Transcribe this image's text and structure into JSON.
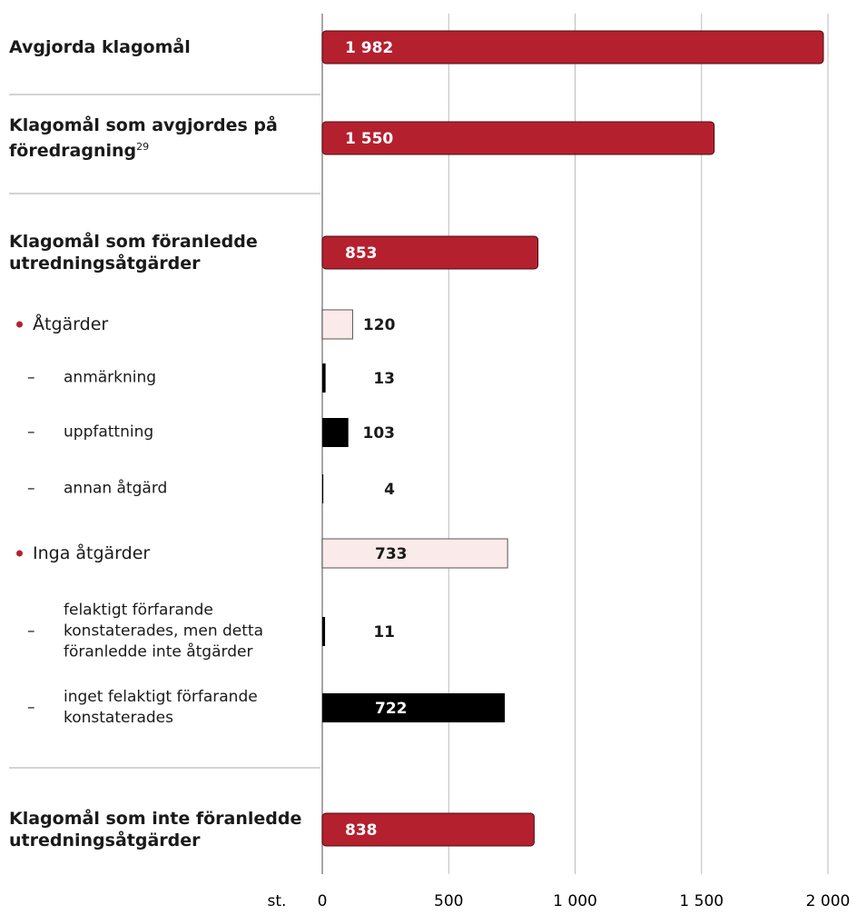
{
  "chart_data": {
    "type": "bar",
    "orientation": "horizontal",
    "categories": [
      "Avgjorda klagomål",
      "Klagomål som avgjordes på föredragning",
      "Klagomål som föranledde utredningsåtgärder",
      "Åtgärder",
      "anmärkning",
      "uppfattning",
      "annan åtgärd",
      "Inga åtgärder",
      "felaktigt förfarande konstaterades, men detta föranledde inte åtgärder",
      "inget felaktigt förfarande konstaterades",
      "Klagomål som inte föranledde utredningsåtgärder"
    ],
    "footnotes": [
      null,
      "29",
      null,
      null,
      null,
      null,
      null,
      null,
      null,
      null,
      null
    ],
    "levels": [
      0,
      0,
      0,
      1,
      2,
      2,
      2,
      1,
      2,
      2,
      0
    ],
    "values": [
      1982,
      1550,
      853,
      120,
      13,
      103,
      4,
      733,
      11,
      722,
      838
    ],
    "value_labels": [
      "1 982",
      "1 550",
      "853",
      "120",
      "13",
      "103",
      "4",
      "733",
      "11",
      "722",
      "838"
    ],
    "colors": [
      "#b5202e",
      "#b5202e",
      "#b5202e",
      "#fbeaea",
      "#000000",
      "#000000",
      "#000000",
      "#fbeaea",
      "#000000",
      "#000000",
      "#b5202e"
    ],
    "xlim": [
      0,
      2000
    ],
    "xticks": [
      0,
      500,
      {
        "value": 1000,
        "label": "1 000"
      },
      {
        "value": 1500,
        "label": "1 500"
      },
      {
        "value": 2000,
        "label": "2 000"
      }
    ],
    "xlabel": "st.",
    "grid": true
  }
}
